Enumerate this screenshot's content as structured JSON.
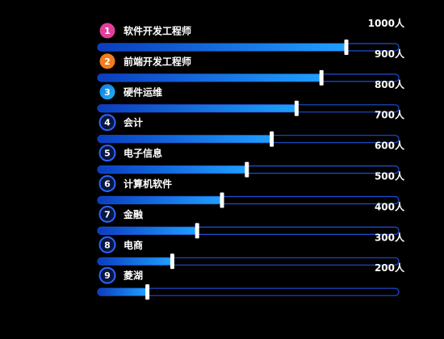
{
  "chart_data": {
    "type": "bar",
    "orientation": "horizontal",
    "categories": [
      "软件开发工程师",
      "前端开发工程师",
      "硬件运维",
      "会计",
      "电子信息",
      "计算机软件",
      "金融",
      "电商",
      "菱湖"
    ],
    "ranks": [
      "1",
      "2",
      "3",
      "4",
      "5",
      "6",
      "7",
      "8",
      "9"
    ],
    "values": [
      1000,
      900,
      800,
      700,
      600,
      500,
      400,
      300,
      200
    ],
    "value_labels": [
      "1000人",
      "900人",
      "800人",
      "700人",
      "600人",
      "500人",
      "400人",
      "300人",
      "200人"
    ],
    "unit": "人",
    "xlim": [
      0,
      1200
    ],
    "title": "",
    "xlabel": "",
    "ylabel": "",
    "grid": false,
    "legend": "none"
  },
  "colors": {
    "background": "#000000",
    "bar_fill_start": "#0a3dbf",
    "bar_fill_end": "#1fa0ff",
    "track_border": "#1e4fd6",
    "marker": "#ffffff",
    "badge_first": "#e0409a",
    "badge_second": "#f07d1e",
    "badge_third_start": "#1578e0",
    "badge_third_end": "#1fb6f0",
    "badge_other_fill": "#0a1640",
    "badge_other_border": "#2a66ff",
    "text": "#ffffff"
  }
}
